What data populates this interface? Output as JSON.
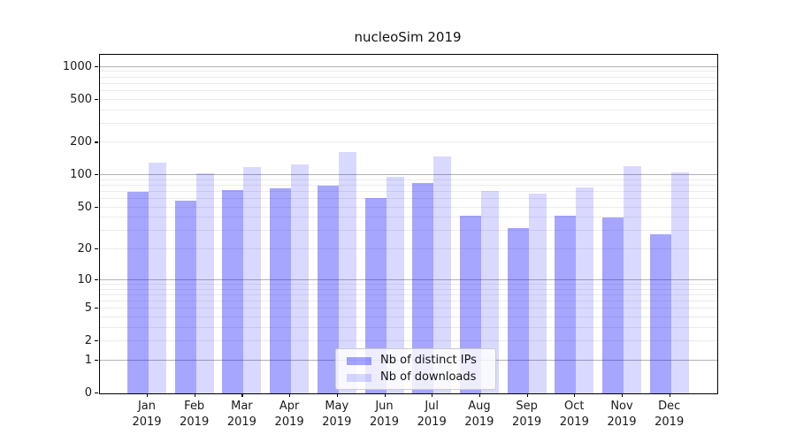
{
  "chart_data": {
    "type": "bar",
    "title": "nucleoSim 2019",
    "scale": "log1p",
    "categories": [
      "Jan",
      "Feb",
      "Mar",
      "Apr",
      "May",
      "Jun",
      "Jul",
      "Aug",
      "Sep",
      "Oct",
      "Nov",
      "Dec"
    ],
    "year": "2019",
    "series": [
      {
        "name": "Nb of distinct IPs",
        "color": "rgba(0,0,255,0.35)",
        "values": [
          70,
          58,
          73,
          76,
          80,
          62,
          85,
          42,
          32,
          42,
          40,
          28
        ]
      },
      {
        "name": "Nb of downloads",
        "color": "rgba(0,0,255,0.15)",
        "values": [
          130,
          105,
          120,
          125,
          163,
          96,
          149,
          72,
          67,
          77,
          122,
          106
        ]
      }
    ],
    "xlabel": "",
    "ylabel": "",
    "y_ticks": [
      0,
      1,
      2,
      5,
      10,
      20,
      50,
      100,
      200,
      500,
      1000
    ],
    "ylim": [
      0,
      1290
    ],
    "grid": "both",
    "legend_position": "lower center"
  },
  "colors": {
    "major_grid": "#b2b2b2",
    "minor_grid": "#ebebeb",
    "axis": "#000000",
    "text": "#1a1a1a"
  }
}
